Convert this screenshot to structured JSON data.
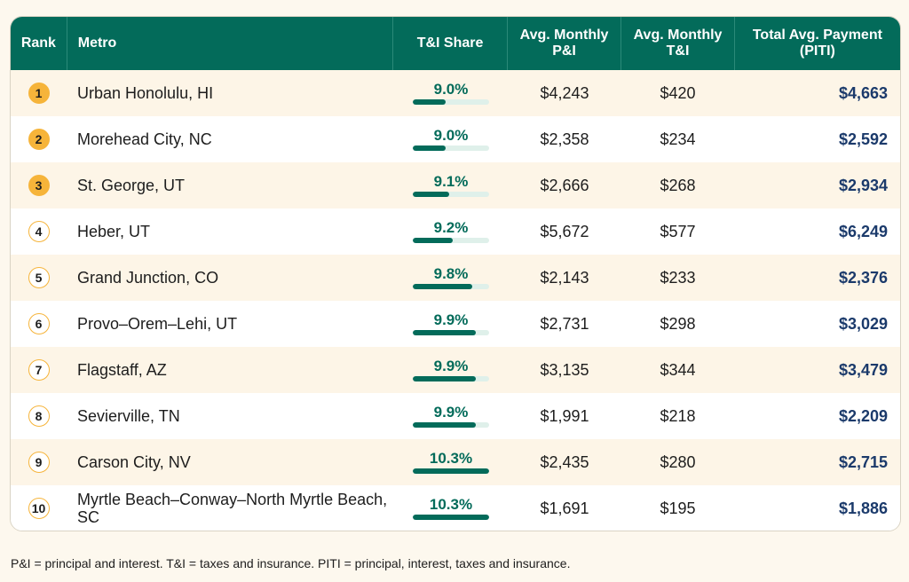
{
  "header": {
    "rank": "Rank",
    "metro": "Metro",
    "share": "T&I Share",
    "pi": "Avg. Monthly P&I",
    "ti": "Avg. Monthly T&I",
    "total": "Total Avg. Payment (PITI)"
  },
  "colors": {
    "header_bg": "#036b5a",
    "bar": "#036b5a",
    "bar_track": "#dff0ea",
    "badge": "#f6b43a",
    "total_text": "#1b3a6b",
    "row_alt": "#fdf5e7"
  },
  "rows": [
    {
      "rank": "1",
      "metro": "Urban Honolulu, HI",
      "share": "9.0%",
      "share_fraction": 0.09,
      "pi": "$4,243",
      "ti": "$420",
      "total": "$4,663",
      "top": true
    },
    {
      "rank": "2",
      "metro": "Morehead City, NC",
      "share": "9.0%",
      "share_fraction": 0.09,
      "pi": "$2,358",
      "ti": "$234",
      "total": "$2,592",
      "top": true
    },
    {
      "rank": "3",
      "metro": "St. George, UT",
      "share": "9.1%",
      "share_fraction": 0.091,
      "pi": "$2,666",
      "ti": "$268",
      "total": "$2,934",
      "top": true
    },
    {
      "rank": "4",
      "metro": "Heber, UT",
      "share": "9.2%",
      "share_fraction": 0.092,
      "pi": "$5,672",
      "ti": "$577",
      "total": "$6,249",
      "top": false
    },
    {
      "rank": "5",
      "metro": "Grand Junction, CO",
      "share": "9.8%",
      "share_fraction": 0.098,
      "pi": "$2,143",
      "ti": "$233",
      "total": "$2,376",
      "top": false
    },
    {
      "rank": "6",
      "metro": "Provo–Orem–Lehi, UT",
      "share": "9.9%",
      "share_fraction": 0.099,
      "pi": "$2,731",
      "ti": "$298",
      "total": "$3,029",
      "top": false
    },
    {
      "rank": "7",
      "metro": "Flagstaff, AZ",
      "share": "9.9%",
      "share_fraction": 0.099,
      "pi": "$3,135",
      "ti": "$344",
      "total": "$3,479",
      "top": false
    },
    {
      "rank": "8",
      "metro": "Sevierville, TN",
      "share": "9.9%",
      "share_fraction": 0.099,
      "pi": "$1,991",
      "ti": "$218",
      "total": "$2,209",
      "top": false
    },
    {
      "rank": "9",
      "metro": "Carson City, NV",
      "share": "10.3%",
      "share_fraction": 0.103,
      "pi": "$2,435",
      "ti": "$280",
      "total": "$2,715",
      "top": false
    },
    {
      "rank": "10",
      "metro": "Myrtle Beach–Conway–North Myrtle Beach, SC",
      "share": "10.3%",
      "share_fraction": 0.103,
      "pi": "$1,691",
      "ti": "$195",
      "total": "$1,886",
      "top": false
    }
  ],
  "note": "P&I = principal and interest. T&I = taxes and insurance. PITI = principal, interest, taxes and insurance."
}
